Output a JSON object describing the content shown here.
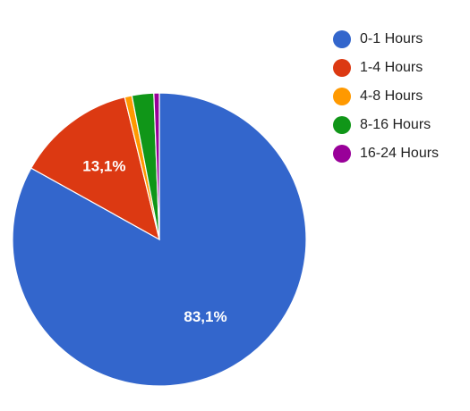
{
  "chart_data": {
    "type": "pie",
    "title": "",
    "categories": [
      "0-1 Hours",
      "1-4 Hours",
      "4-8 Hours",
      "8-16 Hours",
      "16-24 Hours"
    ],
    "values": [
      83.1,
      13.1,
      0.8,
      2.4,
      0.6
    ],
    "colors": [
      "#3366cc",
      "#dc3912",
      "#ff9900",
      "#109618",
      "#990099"
    ],
    "data_labels": [
      "83,1%",
      "13,1%",
      "",
      "",
      ""
    ],
    "legend_position": "right"
  }
}
